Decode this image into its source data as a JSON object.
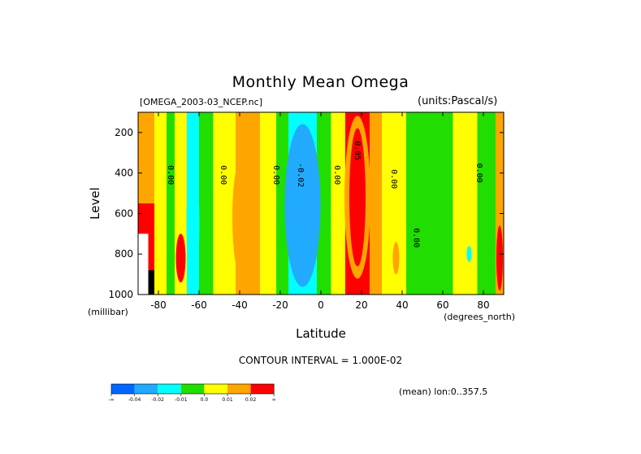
{
  "title": "Monthly Mean Omega",
  "file_label": "[OMEGA_2003-03_NCEP.nc]",
  "units_label": "(units:Pascal/s)",
  "contour_interval": "CONTOUR INTERVAL = 1.000E-02",
  "mean_label": "(mean) lon:0..357.5",
  "chart_data": {
    "type": "heatmap",
    "title": "Monthly Mean Omega",
    "xlabel": "Latitude",
    "ylabel": "Level",
    "x_unit_label": "(degrees_north)",
    "y_unit_label": "(millibar)",
    "xlim": [
      -90,
      90
    ],
    "ylim": [
      1000,
      100
    ],
    "x_ticks": [
      -80,
      -60,
      -40,
      -20,
      0,
      20,
      40,
      60,
      80
    ],
    "x_tick_labels": [
      "-80",
      "-60",
      "-40",
      "-20",
      "0",
      "20",
      "40",
      "60",
      "80"
    ],
    "y_ticks": [
      200,
      400,
      600,
      800,
      1000
    ],
    "y_tick_labels": [
      "200",
      "400",
      "600",
      "800",
      "1000"
    ],
    "contour_labels": [
      {
        "text": "0.00",
        "x": -74,
        "y": 410
      },
      {
        "text": "0.00",
        "x": -48,
        "y": 410
      },
      {
        "text": "0.00",
        "x": -22,
        "y": 410
      },
      {
        "text": "-0.02",
        "x": -10,
        "y": 410
      },
      {
        "text": "0.00",
        "x": 8,
        "y": 410
      },
      {
        "text": "0.05",
        "x": 18,
        "y": 290
      },
      {
        "text": "0.00",
        "x": 36,
        "y": 430
      },
      {
        "text": "0.00",
        "x": 47,
        "y": 720
      },
      {
        "text": "0.00",
        "x": 78,
        "y": 400
      }
    ],
    "colorbar": {
      "colors": [
        "#0066ff",
        "#22aaff",
        "#00ffff",
        "#22dd00",
        "#ffff00",
        "#ffa500",
        "#ff0000"
      ],
      "labels": [
        "-∞",
        "-0.04",
        "-0.02",
        "-0.01",
        "0.0",
        "0.01",
        "0.02",
        "∞"
      ]
    },
    "bands": [
      {
        "lat_min": -90,
        "lat_max": -82,
        "class": 5
      },
      {
        "lat_min": -82,
        "lat_max": -76,
        "class": 4
      },
      {
        "lat_min": -76,
        "lat_max": -72,
        "class": 3
      },
      {
        "lat_min": -72,
        "lat_max": -66,
        "class": 4
      },
      {
        "lat_min": -66,
        "lat_max": -60,
        "class": 2
      },
      {
        "lat_min": -60,
        "lat_max": -53,
        "class": 3
      },
      {
        "lat_min": -53,
        "lat_max": -42,
        "class": 4
      },
      {
        "lat_min": -42,
        "lat_max": -30,
        "class": 5
      },
      {
        "lat_min": -30,
        "lat_max": -22,
        "class": 4
      },
      {
        "lat_min": -22,
        "lat_max": -16,
        "class": 3
      },
      {
        "lat_min": -16,
        "lat_max": -2,
        "class": 2
      },
      {
        "lat_min": -2,
        "lat_max": 5,
        "class": 3
      },
      {
        "lat_min": 5,
        "lat_max": 12,
        "class": 4
      },
      {
        "lat_min": 12,
        "lat_max": 24,
        "class": 6
      },
      {
        "lat_min": 24,
        "lat_max": 30,
        "class": 5
      },
      {
        "lat_min": 30,
        "lat_max": 42,
        "class": 4
      },
      {
        "lat_min": 42,
        "lat_max": 48,
        "class": 3
      },
      {
        "lat_min": 48,
        "lat_max": 65,
        "class": 3
      },
      {
        "lat_min": 65,
        "lat_max": 77,
        "class": 4
      },
      {
        "lat_min": 77,
        "lat_max": 86,
        "class": 3
      },
      {
        "lat_min": 86,
        "lat_max": 90,
        "class": 5
      }
    ]
  }
}
